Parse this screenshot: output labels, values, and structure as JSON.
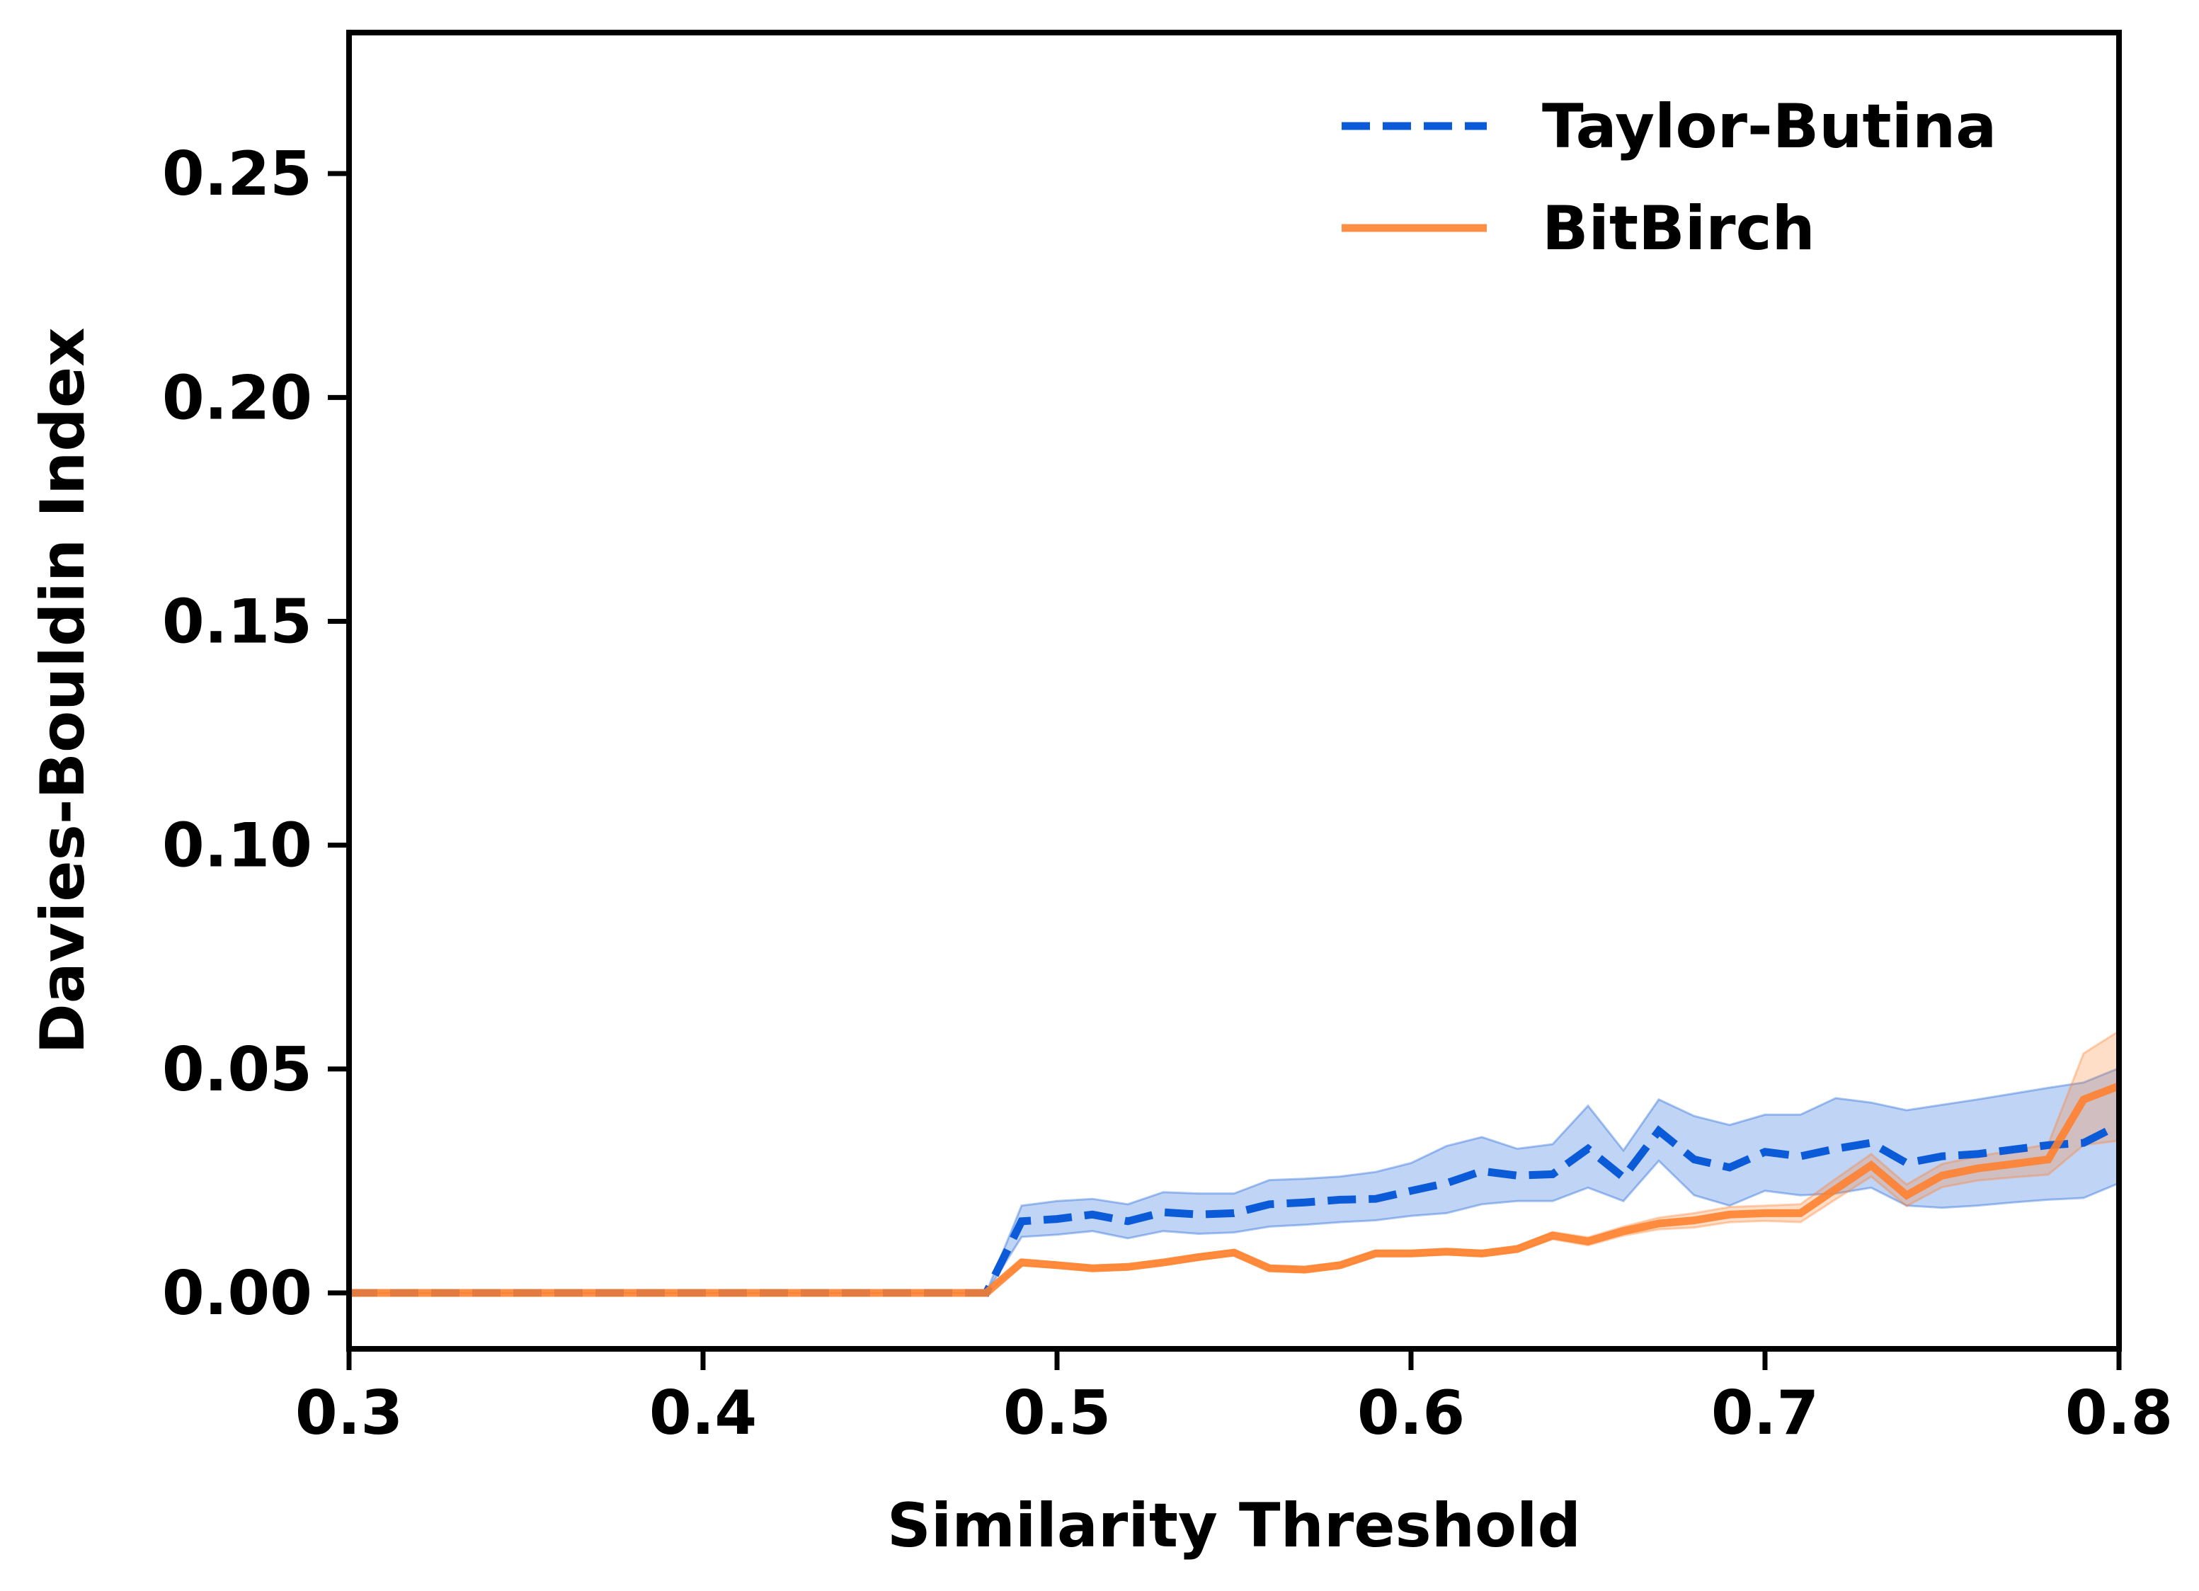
{
  "chart_data": {
    "type": "line",
    "xlabel": "Similarity Threshold",
    "ylabel": "Davies-Bouldin Index",
    "xlim": [
      0.3,
      0.8
    ],
    "ylim": [
      -0.0125,
      0.2815
    ],
    "xticks": [
      0.3,
      0.4,
      0.5,
      0.6,
      0.7,
      0.8
    ],
    "xtick_labels": [
      "0.3",
      "0.4",
      "0.5",
      "0.6",
      "0.7",
      "0.8"
    ],
    "yticks": [
      0.0,
      0.05,
      0.1,
      0.15,
      0.2,
      0.25
    ],
    "ytick_labels": [
      "0.00",
      "0.05",
      "0.10",
      "0.15",
      "0.20",
      "0.25"
    ],
    "grid": false,
    "legend_position": "top-right",
    "x": [
      0.3,
      0.31,
      0.32,
      0.33,
      0.34,
      0.35,
      0.36,
      0.37,
      0.38,
      0.39,
      0.4,
      0.41,
      0.42,
      0.43,
      0.44,
      0.45,
      0.46,
      0.47,
      0.48,
      0.49,
      0.5,
      0.51,
      0.52,
      0.53,
      0.54,
      0.55,
      0.56,
      0.57,
      0.58,
      0.59,
      0.6,
      0.61,
      0.62,
      0.63,
      0.64,
      0.65,
      0.66,
      0.67,
      0.68,
      0.69,
      0.7,
      0.71,
      0.72,
      0.73,
      0.74,
      0.75,
      0.76,
      0.77,
      0.78,
      0.79,
      0.8
    ],
    "series": [
      {
        "name": "Taylor-Butina",
        "color": "#0b5ad8",
        "style": "dashed",
        "values": [
          0,
          0,
          0,
          0,
          0,
          0,
          0,
          0,
          0,
          0,
          0,
          0,
          0,
          0,
          0,
          0,
          0,
          0,
          0,
          0.016,
          0.0165,
          0.0175,
          0.016,
          0.018,
          0.0175,
          0.0178,
          0.0198,
          0.0202,
          0.0208,
          0.021,
          0.0228,
          0.0245,
          0.0272,
          0.0262,
          0.0265,
          0.0322,
          0.0258,
          0.0362,
          0.0298,
          0.028,
          0.0315,
          0.0305,
          0.0322,
          0.0335,
          0.029,
          0.0305,
          0.031,
          0.032,
          0.033,
          0.0335,
          0.0375
        ],
        "band_upper": [
          0,
          0,
          0,
          0,
          0,
          0,
          0,
          0,
          0,
          0,
          0,
          0,
          0,
          0,
          0,
          0,
          0,
          0,
          0,
          0.0195,
          0.0205,
          0.021,
          0.0198,
          0.0225,
          0.0222,
          0.0222,
          0.0252,
          0.0255,
          0.026,
          0.027,
          0.029,
          0.0328,
          0.0348,
          0.0322,
          0.0332,
          0.0418,
          0.0318,
          0.0432,
          0.0395,
          0.0375,
          0.0398,
          0.0398,
          0.0435,
          0.0425,
          0.0408,
          0.042,
          0.0432,
          0.0445,
          0.0458,
          0.047,
          0.0502
        ],
        "band_lower": [
          0,
          0,
          0,
          0,
          0,
          0,
          0,
          0,
          0,
          0,
          0,
          0,
          0,
          0,
          0,
          0,
          0,
          0,
          0,
          0.0125,
          0.013,
          0.0138,
          0.0122,
          0.0138,
          0.0132,
          0.0135,
          0.0148,
          0.0152,
          0.0158,
          0.0162,
          0.0172,
          0.0178,
          0.0198,
          0.0205,
          0.0205,
          0.0235,
          0.0205,
          0.0295,
          0.0218,
          0.0195,
          0.0228,
          0.0218,
          0.0222,
          0.0235,
          0.0195,
          0.019,
          0.0195,
          0.0202,
          0.0208,
          0.0212,
          0.0245
        ]
      },
      {
        "name": "BitBirch",
        "color": "#ff7f2a",
        "style": "solid",
        "values": [
          0,
          0,
          0,
          0,
          0,
          0,
          0,
          0,
          0,
          0,
          0,
          0,
          0,
          0,
          0,
          0,
          0,
          0,
          0,
          0.0068,
          0.0062,
          0.0055,
          0.0058,
          0.0068,
          0.008,
          0.009,
          0.0055,
          0.0052,
          0.0062,
          0.0088,
          0.0088,
          0.0092,
          0.0088,
          0.0098,
          0.0128,
          0.0115,
          0.0138,
          0.0155,
          0.0162,
          0.0175,
          0.0178,
          0.0178,
          0.0232,
          0.0285,
          0.0218,
          0.0262,
          0.0278,
          0.0288,
          0.0298,
          0.0432,
          0.0462
        ],
        "band_upper": [
          0,
          0,
          0,
          0,
          0,
          0,
          0,
          0,
          0,
          0,
          0,
          0,
          0,
          0,
          0,
          0,
          0,
          0,
          0,
          0.0075,
          0.0068,
          0.006,
          0.0063,
          0.0073,
          0.0086,
          0.0096,
          0.006,
          0.0057,
          0.0068,
          0.0094,
          0.0094,
          0.0098,
          0.0094,
          0.0104,
          0.0136,
          0.0124,
          0.0148,
          0.0168,
          0.0178,
          0.0192,
          0.0195,
          0.0198,
          0.0255,
          0.031,
          0.0242,
          0.0288,
          0.0305,
          0.0318,
          0.0332,
          0.0535,
          0.0585
        ],
        "band_lower": [
          0,
          0,
          0,
          0,
          0,
          0,
          0,
          0,
          0,
          0,
          0,
          0,
          0,
          0,
          0,
          0,
          0,
          0,
          0,
          0.0061,
          0.0056,
          0.005,
          0.0053,
          0.0063,
          0.0074,
          0.0084,
          0.005,
          0.0047,
          0.0056,
          0.0082,
          0.0082,
          0.0086,
          0.0082,
          0.0092,
          0.012,
          0.0106,
          0.0128,
          0.0142,
          0.0146,
          0.0158,
          0.0161,
          0.0158,
          0.0209,
          0.026,
          0.0194,
          0.0236,
          0.0251,
          0.0258,
          0.0264,
          0.033,
          0.034
        ]
      }
    ]
  }
}
